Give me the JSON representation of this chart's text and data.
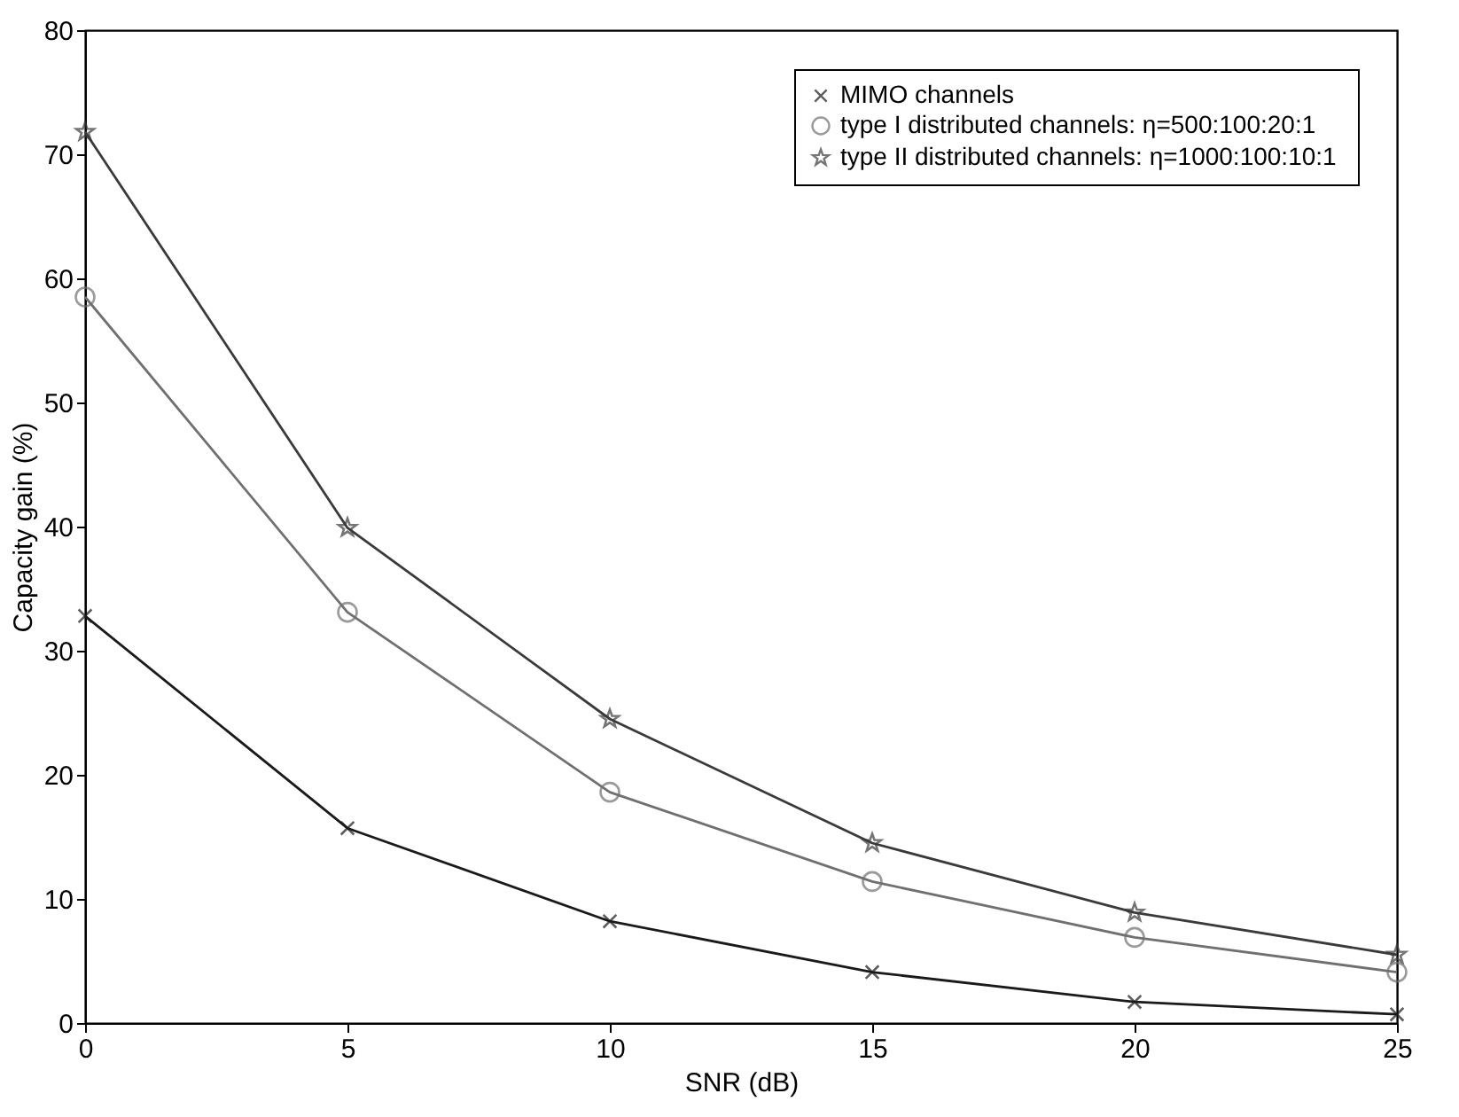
{
  "chart_data": {
    "type": "line",
    "xlabel": "SNR   (dB)",
    "ylabel": "Capacity gain (%)",
    "x": [
      0,
      5,
      10,
      15,
      20,
      25
    ],
    "xlim": [
      0,
      25
    ],
    "xticks": [
      0,
      5,
      10,
      15,
      20,
      25
    ],
    "ylim": [
      0,
      80
    ],
    "yticks": [
      0,
      10,
      20,
      30,
      40,
      50,
      60,
      70,
      80
    ],
    "grid": false,
    "legend": "top right",
    "line_style": "solid",
    "series": [
      {
        "name": "MIMO channels",
        "color": "#1a1a1a",
        "marker": "cross",
        "values": [
          32.8,
          15.7,
          8.2,
          4.1,
          1.7,
          0.7
        ]
      },
      {
        "name": "type I distributed channels:  η=500:100:20:1",
        "color": "#707070",
        "marker": "circle",
        "values": [
          58.5,
          33.1,
          18.6,
          11.4,
          6.9,
          4.1
        ]
      },
      {
        "name": "type II distributed channels:  η=1000:100:10:1",
        "color": "#3a3a3a",
        "marker": "star",
        "values": [
          71.8,
          39.9,
          24.5,
          14.5,
          8.9,
          5.5
        ]
      }
    ]
  }
}
